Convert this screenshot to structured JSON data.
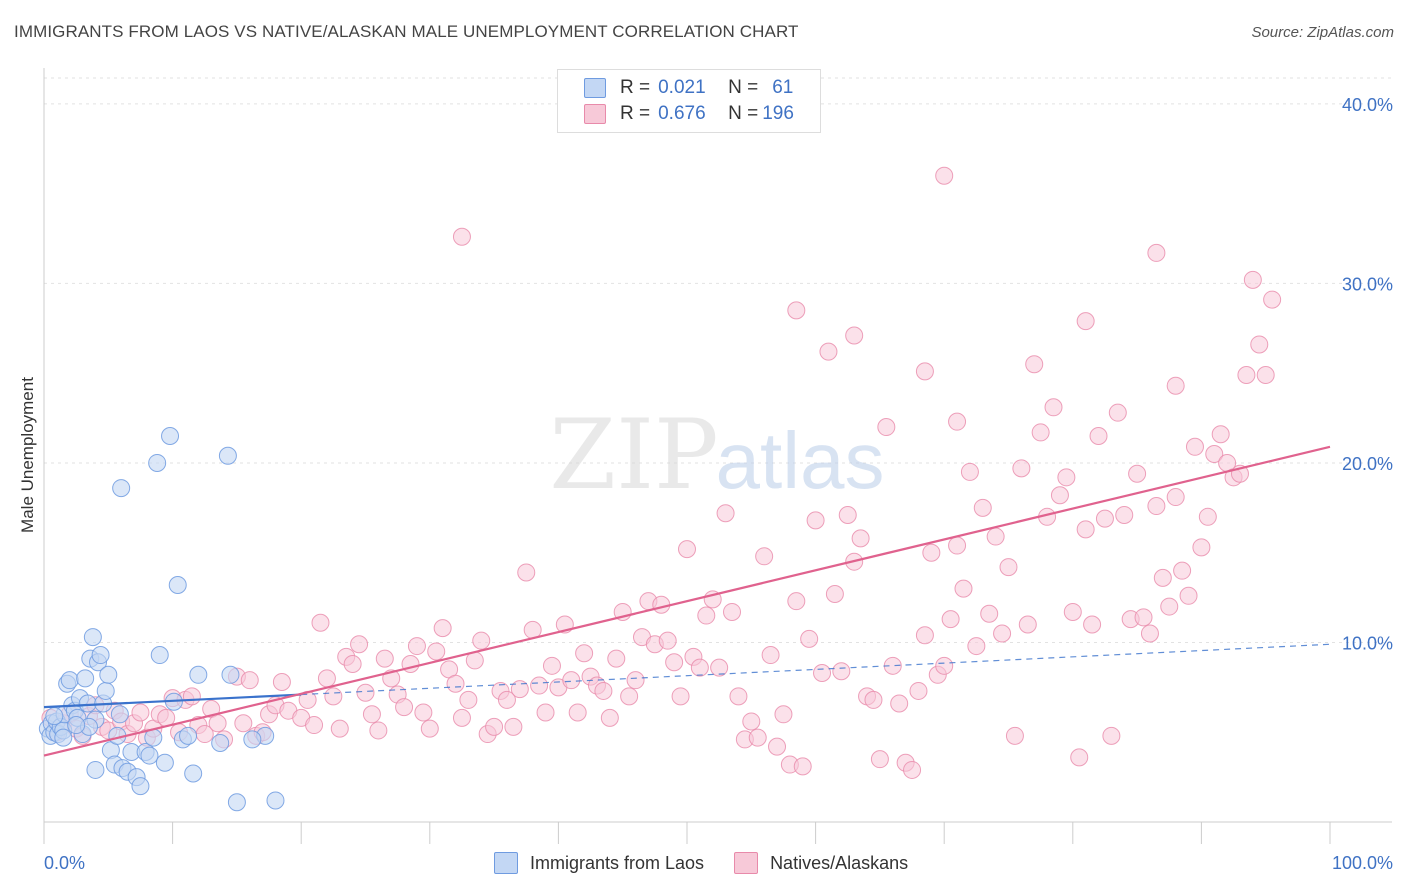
{
  "title": "IMMIGRANTS FROM LAOS VS NATIVE/ALASKAN MALE UNEMPLOYMENT CORRELATION CHART",
  "source": "Source: ZipAtlas.com",
  "watermark": {
    "zip": "ZIP",
    "atlas": "atlas"
  },
  "legend_top": [
    {
      "r_label": "R =",
      "r_value": "0.021",
      "n_label": "N =",
      "n_value": "61"
    },
    {
      "r_label": "R =",
      "r_value": "0.676",
      "n_label": "N =",
      "n_value": "196"
    }
  ],
  "legend_bottom": [
    {
      "label": "Immigrants from Laos"
    },
    {
      "label": "Natives/Alaskans"
    }
  ],
  "chart_data": {
    "type": "scatter",
    "title": "IMMIGRANTS FROM LAOS VS NATIVE/ALASKAN MALE UNEMPLOYMENT CORRELATION CHART",
    "xlabel": "",
    "ylabel": "Male Unemployment",
    "xlim": [
      0,
      100
    ],
    "ylim": [
      0,
      42
    ],
    "x_tick_labels": [
      "0.0%",
      "100.0%"
    ],
    "y_ticks": [
      10,
      20,
      30,
      40
    ],
    "y_tick_labels": [
      "10.0%",
      "20.0%",
      "30.0%",
      "40.0%"
    ],
    "grid": true,
    "colors": {
      "laos_fill": "#c3d7f4",
      "laos_edge": "#6f9be0",
      "laos_line": "#3a72cc",
      "native_fill": "#f7c9d8",
      "native_edge": "#e88aaa",
      "native_line": "#e0628e",
      "tick_label": "#3f72c4"
    },
    "series": [
      {
        "name": "Immigrants from Laos",
        "R": 0.021,
        "N": 61,
        "trend": {
          "x0": 0,
          "y0": 6.4,
          "x1": 100,
          "y1": 9.9,
          "solid_until": 20
        },
        "points": [
          [
            0.3,
            5.2
          ],
          [
            0.5,
            4.8
          ],
          [
            0.6,
            5.5
          ],
          [
            0.8,
            5.0
          ],
          [
            1.0,
            5.6
          ],
          [
            1.1,
            4.9
          ],
          [
            1.3,
            5.3
          ],
          [
            1.5,
            5.1
          ],
          [
            1.6,
            6.0
          ],
          [
            1.8,
            7.7
          ],
          [
            2.0,
            7.9
          ],
          [
            2.2,
            6.5
          ],
          [
            2.4,
            6.2
          ],
          [
            2.6,
            5.8
          ],
          [
            2.8,
            6.9
          ],
          [
            3.0,
            4.9
          ],
          [
            3.2,
            8.0
          ],
          [
            3.4,
            6.6
          ],
          [
            3.6,
            9.1
          ],
          [
            3.8,
            10.3
          ],
          [
            4.0,
            5.7
          ],
          [
            4.2,
            8.9
          ],
          [
            4.4,
            9.3
          ],
          [
            4.6,
            6.6
          ],
          [
            4.8,
            7.3
          ],
          [
            5.0,
            8.2
          ],
          [
            5.2,
            4.0
          ],
          [
            5.5,
            3.2
          ],
          [
            5.7,
            4.8
          ],
          [
            5.9,
            6.0
          ],
          [
            6.1,
            3.0
          ],
          [
            6.5,
            2.8
          ],
          [
            6.8,
            3.9
          ],
          [
            7.2,
            2.5
          ],
          [
            7.5,
            2.0
          ],
          [
            7.9,
            3.9
          ],
          [
            8.2,
            3.7
          ],
          [
            8.5,
            4.7
          ],
          [
            9.0,
            9.3
          ],
          [
            9.4,
            3.3
          ],
          [
            9.8,
            21.5
          ],
          [
            10.1,
            6.7
          ],
          [
            10.4,
            13.2
          ],
          [
            10.8,
            4.6
          ],
          [
            11.2,
            4.8
          ],
          [
            11.6,
            2.7
          ],
          [
            12.0,
            8.2
          ],
          [
            8.8,
            20.0
          ],
          [
            6.0,
            18.6
          ],
          [
            14.3,
            20.4
          ],
          [
            15.0,
            1.1
          ],
          [
            18.0,
            1.2
          ],
          [
            14.5,
            8.2
          ],
          [
            13.7,
            4.4
          ],
          [
            17.2,
            4.8
          ],
          [
            3.5,
            5.3
          ],
          [
            2.5,
            5.4
          ],
          [
            1.5,
            4.7
          ],
          [
            4.0,
            2.9
          ],
          [
            0.8,
            5.9
          ],
          [
            16.2,
            4.6
          ]
        ]
      },
      {
        "name": "Natives/Alaskans",
        "R": 0.676,
        "N": 196,
        "trend": {
          "x0": 0,
          "y0": 3.7,
          "x1": 100,
          "y1": 20.9
        },
        "points": [
          [
            0.5,
            5.8
          ],
          [
            1.0,
            5.0
          ],
          [
            1.5,
            5.5
          ],
          [
            2.0,
            6.0
          ],
          [
            2.5,
            5.2
          ],
          [
            3.0,
            4.8
          ],
          [
            3.5,
            5.9
          ],
          [
            4.0,
            6.5
          ],
          [
            4.5,
            5.3
          ],
          [
            5.0,
            5.1
          ],
          [
            5.5,
            6.2
          ],
          [
            6.0,
            5.6
          ],
          [
            6.5,
            4.9
          ],
          [
            7.0,
            5.5
          ],
          [
            7.5,
            6.1
          ],
          [
            8.0,
            4.7
          ],
          [
            8.5,
            5.2
          ],
          [
            9.0,
            6.0
          ],
          [
            9.5,
            5.8
          ],
          [
            10.0,
            6.9
          ],
          [
            10.5,
            5.0
          ],
          [
            11.0,
            6.8
          ],
          [
            11.5,
            7.0
          ],
          [
            12.0,
            5.4
          ],
          [
            12.5,
            4.9
          ],
          [
            13.0,
            6.3
          ],
          [
            13.5,
            5.5
          ],
          [
            14.0,
            4.6
          ],
          [
            15.0,
            8.1
          ],
          [
            15.5,
            5.5
          ],
          [
            16.0,
            7.9
          ],
          [
            16.5,
            4.8
          ],
          [
            17.0,
            5.0
          ],
          [
            17.5,
            6.0
          ],
          [
            18.0,
            6.5
          ],
          [
            18.5,
            7.8
          ],
          [
            19.0,
            6.2
          ],
          [
            20.0,
            5.8
          ],
          [
            20.5,
            6.8
          ],
          [
            21.0,
            5.4
          ],
          [
            21.5,
            11.1
          ],
          [
            22.0,
            8.0
          ],
          [
            22.5,
            7.0
          ],
          [
            23.0,
            5.2
          ],
          [
            23.5,
            9.2
          ],
          [
            24.0,
            8.8
          ],
          [
            24.5,
            9.9
          ],
          [
            25.0,
            7.2
          ],
          [
            25.5,
            6.0
          ],
          [
            26.0,
            5.1
          ],
          [
            26.5,
            9.1
          ],
          [
            27.0,
            8.0
          ],
          [
            27.5,
            7.1
          ],
          [
            28.0,
            6.4
          ],
          [
            28.5,
            8.8
          ],
          [
            29.0,
            9.8
          ],
          [
            29.5,
            6.1
          ],
          [
            30.0,
            5.2
          ],
          [
            30.5,
            9.5
          ],
          [
            31.0,
            10.8
          ],
          [
            31.5,
            8.5
          ],
          [
            32.0,
            7.7
          ],
          [
            32.5,
            5.8
          ],
          [
            33.0,
            6.8
          ],
          [
            33.5,
            9.0
          ],
          [
            34.0,
            10.1
          ],
          [
            34.5,
            4.9
          ],
          [
            35.0,
            5.3
          ],
          [
            35.5,
            7.3
          ],
          [
            36.0,
            6.8
          ],
          [
            36.5,
            5.3
          ],
          [
            37.0,
            7.4
          ],
          [
            37.5,
            13.9
          ],
          [
            38.0,
            10.7
          ],
          [
            38.5,
            7.6
          ],
          [
            39.0,
            6.1
          ],
          [
            39.5,
            8.7
          ],
          [
            40.0,
            7.5
          ],
          [
            40.5,
            11.0
          ],
          [
            41.0,
            7.9
          ],
          [
            41.5,
            6.1
          ],
          [
            42.0,
            9.4
          ],
          [
            42.5,
            8.1
          ],
          [
            43.0,
            7.6
          ],
          [
            43.5,
            7.3
          ],
          [
            44.0,
            5.8
          ],
          [
            44.5,
            9.1
          ],
          [
            45.0,
            11.7
          ],
          [
            45.5,
            7.0
          ],
          [
            46.0,
            7.9
          ],
          [
            46.5,
            10.3
          ],
          [
            47.0,
            12.3
          ],
          [
            47.5,
            9.9
          ],
          [
            48.0,
            12.1
          ],
          [
            48.5,
            10.1
          ],
          [
            49.0,
            8.9
          ],
          [
            49.5,
            7.0
          ],
          [
            50.0,
            15.2
          ],
          [
            50.5,
            9.2
          ],
          [
            51.0,
            8.6
          ],
          [
            51.5,
            11.5
          ],
          [
            52.0,
            12.4
          ],
          [
            52.5,
            8.6
          ],
          [
            53.0,
            17.2
          ],
          [
            53.5,
            11.7
          ],
          [
            54.0,
            7.0
          ],
          [
            54.5,
            4.6
          ],
          [
            55.0,
            5.6
          ],
          [
            55.5,
            4.7
          ],
          [
            56.0,
            14.8
          ],
          [
            56.5,
            9.3
          ],
          [
            57.0,
            4.2
          ],
          [
            57.5,
            6.0
          ],
          [
            58.0,
            3.2
          ],
          [
            58.5,
            12.3
          ],
          [
            59.0,
            3.1
          ],
          [
            59.5,
            10.2
          ],
          [
            60.0,
            16.8
          ],
          [
            60.5,
            8.3
          ],
          [
            61.0,
            26.2
          ],
          [
            61.5,
            12.7
          ],
          [
            62.0,
            8.4
          ],
          [
            62.5,
            17.1
          ],
          [
            63.0,
            14.5
          ],
          [
            63.5,
            15.8
          ],
          [
            64.0,
            7.0
          ],
          [
            64.5,
            6.8
          ],
          [
            65.0,
            3.5
          ],
          [
            65.5,
            22.0
          ],
          [
            66.0,
            8.7
          ],
          [
            66.5,
            6.6
          ],
          [
            67.0,
            3.3
          ],
          [
            67.5,
            2.9
          ],
          [
            68.0,
            7.3
          ],
          [
            68.5,
            10.4
          ],
          [
            69.0,
            15.0
          ],
          [
            69.5,
            8.2
          ],
          [
            70.0,
            8.7
          ],
          [
            70.5,
            11.3
          ],
          [
            71.0,
            15.4
          ],
          [
            71.5,
            13.0
          ],
          [
            72.0,
            19.5
          ],
          [
            72.5,
            9.8
          ],
          [
            73.0,
            17.5
          ],
          [
            73.5,
            11.6
          ],
          [
            74.0,
            15.9
          ],
          [
            74.5,
            10.5
          ],
          [
            75.0,
            14.2
          ],
          [
            75.5,
            4.8
          ],
          [
            76.0,
            19.7
          ],
          [
            76.5,
            11.0
          ],
          [
            77.0,
            25.5
          ],
          [
            77.5,
            21.7
          ],
          [
            78.0,
            17.0
          ],
          [
            78.5,
            23.1
          ],
          [
            79.0,
            18.2
          ],
          [
            79.5,
            19.2
          ],
          [
            80.0,
            11.7
          ],
          [
            80.5,
            3.6
          ],
          [
            81.0,
            16.3
          ],
          [
            81.5,
            11.0
          ],
          [
            82.0,
            21.5
          ],
          [
            82.5,
            16.9
          ],
          [
            83.0,
            4.8
          ],
          [
            83.5,
            22.8
          ],
          [
            84.0,
            17.1
          ],
          [
            84.5,
            11.3
          ],
          [
            85.0,
            19.4
          ],
          [
            85.5,
            11.4
          ],
          [
            86.0,
            10.5
          ],
          [
            86.5,
            17.6
          ],
          [
            87.0,
            13.6
          ],
          [
            87.5,
            12.0
          ],
          [
            88.0,
            18.1
          ],
          [
            88.5,
            14.0
          ],
          [
            89.0,
            12.6
          ],
          [
            89.5,
            20.9
          ],
          [
            90.0,
            15.3
          ],
          [
            90.5,
            17.0
          ],
          [
            91.0,
            20.5
          ],
          [
            91.5,
            21.6
          ],
          [
            92.0,
            20.0
          ],
          [
            92.5,
            19.2
          ],
          [
            93.0,
            19.4
          ],
          [
            93.5,
            24.9
          ],
          [
            94.0,
            30.2
          ],
          [
            94.5,
            26.6
          ],
          [
            95.0,
            24.9
          ],
          [
            95.5,
            29.1
          ],
          [
            52.5,
            39.4
          ],
          [
            70.0,
            36.0
          ],
          [
            32.5,
            32.6
          ],
          [
            86.5,
            31.7
          ],
          [
            58.5,
            28.5
          ],
          [
            81.0,
            27.9
          ],
          [
            63.0,
            27.1
          ],
          [
            68.5,
            25.1
          ],
          [
            88.0,
            24.3
          ],
          [
            71.0,
            22.3
          ]
        ]
      }
    ]
  }
}
